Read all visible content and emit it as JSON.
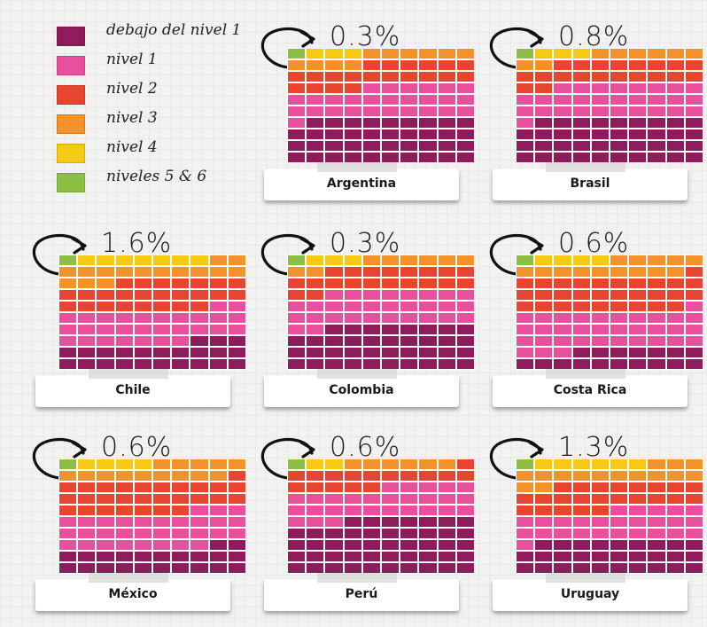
{
  "chart_data": {
    "type": "waffle",
    "colors": {
      "debajo_nivel_1": "#8e1c5c",
      "nivel_1": "#e84f9c",
      "nivel_2": "#e84530",
      "nivel_3": "#f3912a",
      "nivel_4": "#f6c915",
      "niveles_5_6": "#8dbf45"
    },
    "legend": [
      {
        "key": "debajo_nivel_1",
        "label": "debajo del nivel 1"
      },
      {
        "key": "nivel_1",
        "label": "nivel 1"
      },
      {
        "key": "nivel_2",
        "label": "nivel 2"
      },
      {
        "key": "nivel_3",
        "label": "nivel 3"
      },
      {
        "key": "nivel_4",
        "label": "nivel 4"
      },
      {
        "key": "niveles_5_6",
        "label": "niveles 5 & 6"
      }
    ],
    "countries": [
      {
        "name": "Argentina",
        "top_label": "0.3%",
        "levels": {
          "niveles_5_6": 0.3,
          "nivel_4": 3.3,
          "nivel_3": 10.4,
          "nivel_2": 20.0,
          "nivel_1": 27.0,
          "debajo_nivel_1": 39.0
        }
      },
      {
        "name": "Brasil",
        "top_label": "0.8%",
        "levels": {
          "niveles_5_6": 0.8,
          "nivel_4": 3.3,
          "nivel_3": 7.9,
          "nivel_2": 20.0,
          "nivel_1": 29.0,
          "debajo_nivel_1": 39.0
        }
      },
      {
        "name": "Chile",
        "top_label": "1.6%",
        "levels": {
          "niveles_5_6": 1.6,
          "nivel_4": 6.6,
          "nivel_3": 14.8,
          "nivel_2": 25.0,
          "nivel_1": 29.0,
          "debajo_nivel_1": 23.0
        }
      },
      {
        "name": "Colombia",
        "top_label": "0.3%",
        "levels": {
          "niveles_5_6": 0.3,
          "nivel_4": 3.1,
          "nivel_3": 8.6,
          "nivel_2": 20.0,
          "nivel_1": 30.0,
          "debajo_nivel_1": 38.0
        }
      },
      {
        "name": "Costa Rica",
        "top_label": "0.6%",
        "levels": {
          "niveles_5_6": 0.6,
          "nivel_4": 4.4,
          "nivel_3": 14.0,
          "nivel_2": 30.0,
          "nivel_1": 34.0,
          "debajo_nivel_1": 17.0
        }
      },
      {
        "name": "México",
        "top_label": "0.6%",
        "levels": {
          "niveles_5_6": 0.6,
          "nivel_4": 4.1,
          "nivel_3": 14.3,
          "nivel_2": 28.0,
          "nivel_1": 31.0,
          "debajo_nivel_1": 22.0
        }
      },
      {
        "name": "Perú",
        "top_label": "0.6%",
        "levels": {
          "niveles_5_6": 0.6,
          "nivel_4": 2.0,
          "nivel_3": 6.4,
          "nivel_2": 16.0,
          "nivel_1": 28.0,
          "debajo_nivel_1": 47.0
        }
      },
      {
        "name": "Uruguay",
        "top_label": "1.3%",
        "levels": {
          "niveles_5_6": 1.3,
          "nivel_4": 6.1,
          "nivel_3": 14.6,
          "nivel_2": 23.0,
          "nivel_1": 26.0,
          "debajo_nivel_1": 29.0
        }
      }
    ]
  }
}
